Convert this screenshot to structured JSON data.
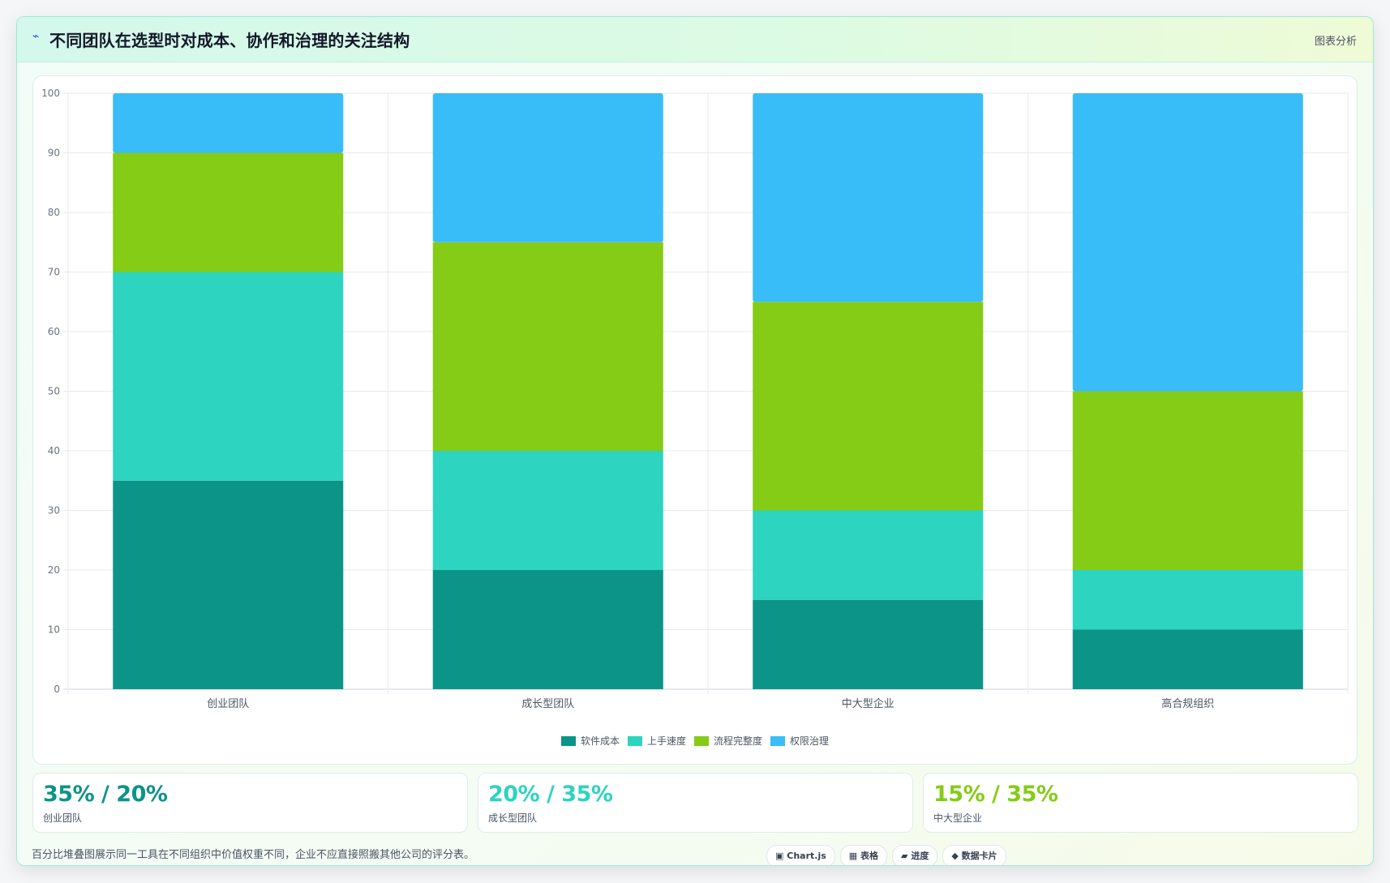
{
  "header": {
    "icon": "⌁",
    "title": "不同团队在选型时对成本、协作和治理的关注结构",
    "action_label": "图表分析"
  },
  "colors": {
    "series": [
      "#0d9488",
      "#2dd4bf",
      "#84cc16",
      "#38bdf8"
    ]
  },
  "chart_data": {
    "type": "bar",
    "stacked": true,
    "categories": [
      "创业团队",
      "成长型团队",
      "中大型企业",
      "高合规组织"
    ],
    "series": [
      {
        "name": "软件成本",
        "values": [
          35,
          20,
          15,
          10
        ]
      },
      {
        "name": "上手速度",
        "values": [
          35,
          20,
          15,
          10
        ]
      },
      {
        "name": "流程完整度",
        "values": [
          20,
          35,
          35,
          30
        ]
      },
      {
        "name": "权限治理",
        "values": [
          10,
          25,
          35,
          50
        ]
      }
    ],
    "ylim": [
      0,
      100
    ],
    "yticks": [
      0,
      10,
      20,
      30,
      40,
      50,
      60,
      70,
      80,
      90,
      100
    ],
    "grid": true,
    "legend_position": "bottom"
  },
  "stats": [
    {
      "value": "35% / 20%",
      "label": "创业团队",
      "color": "#0d9488"
    },
    {
      "value": "20% / 35%",
      "label": "成长型团队",
      "color": "#2dd4bf"
    },
    {
      "value": "15% / 35%",
      "label": "中大型企业",
      "color": "#84cc16"
    }
  ],
  "footnote": "百分比堆叠图展示同一工具在不同组织中价值权重不同，企业不应直接照搬其他公司的评分表。",
  "tags": [
    {
      "icon": "▣",
      "label": "Chart.js"
    },
    {
      "icon": "▦",
      "label": "表格"
    },
    {
      "icon": "▰",
      "label": "进度"
    },
    {
      "icon": "◆",
      "label": "数据卡片"
    }
  ]
}
